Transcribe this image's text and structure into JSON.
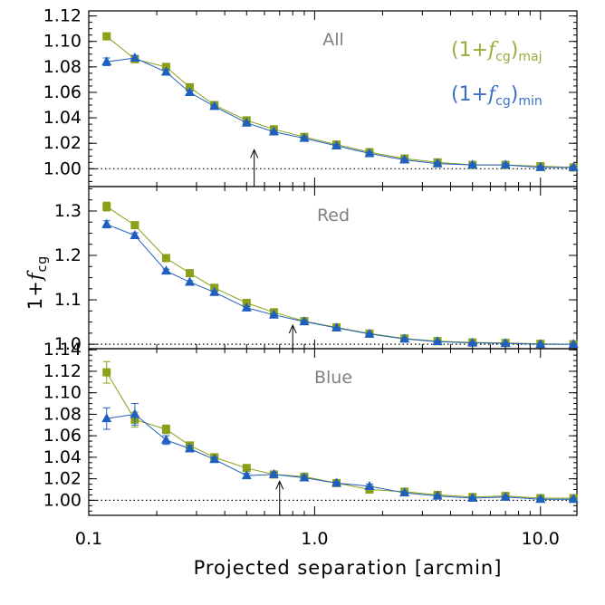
{
  "colors": {
    "major": "#8a9f1a",
    "minor": "#1f5fc0",
    "title": "#808080",
    "legend_major": "#9aab3a",
    "legend_minor": "#3a6fc8"
  },
  "figure": {
    "xlabel": "Projected separation [arcmin]",
    "ylabel_prefix": "1+",
    "ylabel_f": "f",
    "ylabel_sub": "cg",
    "legend": {
      "major": {
        "open": "(1+",
        "f": "f",
        "sub_cg": "cg",
        "close": ")",
        "sub": "maj"
      },
      "minor": {
        "open": "(1+",
        "f": "f",
        "sub_cg": "cg",
        "close": ")",
        "sub": "min"
      }
    },
    "x_tick_labels": [
      "0.1",
      "1.0",
      "10.0"
    ]
  },
  "chart_data": [
    {
      "type": "line",
      "title": "All",
      "xscale": "log",
      "xlim": [
        0.1,
        14.5
      ],
      "ylim": [
        0.986,
        1.124
      ],
      "yticks": [
        1.0,
        1.02,
        1.04,
        1.06,
        1.08,
        1.1,
        1.12
      ],
      "ytick_labels": [
        "1.00",
        "1.02",
        "1.04",
        "1.06",
        "1.08",
        "1.10",
        "1.12"
      ],
      "reference_line": 1.0,
      "arrow_x": 0.54,
      "legend_location": "top-right",
      "x": [
        0.12,
        0.16,
        0.22,
        0.28,
        0.36,
        0.5,
        0.66,
        0.9,
        1.25,
        1.75,
        2.5,
        3.5,
        5.0,
        7.0,
        10.0,
        14.0
      ],
      "series": [
        {
          "name": "(1+fcg)maj",
          "marker": "square",
          "values": [
            1.104,
            1.086,
            1.08,
            1.064,
            1.05,
            1.038,
            1.031,
            1.025,
            1.019,
            1.013,
            1.008,
            1.005,
            1.003,
            1.003,
            1.002,
            1.001
          ],
          "errors": [
            0.002,
            0.002,
            0.002,
            0.001,
            0.001,
            0.001,
            0.001,
            0.001,
            0.001,
            0.001,
            0.001,
            0.001,
            0.001,
            0.001,
            0.001,
            0.001
          ]
        },
        {
          "name": "(1+fcg)min",
          "marker": "triangle",
          "values": [
            1.084,
            1.087,
            1.076,
            1.06,
            1.049,
            1.036,
            1.029,
            1.024,
            1.018,
            1.012,
            1.007,
            1.004,
            1.003,
            1.003,
            1.001,
            1.001
          ],
          "errors": [
            0.003,
            0.002,
            0.002,
            0.001,
            0.001,
            0.001,
            0.001,
            0.001,
            0.001,
            0.001,
            0.001,
            0.001,
            0.001,
            0.001,
            0.001,
            0.001
          ]
        }
      ]
    },
    {
      "type": "line",
      "title": "Red",
      "xscale": "log",
      "xlim": [
        0.1,
        14.5
      ],
      "ylim": [
        0.99,
        1.355
      ],
      "yticks": [
        1.0,
        1.1,
        1.2,
        1.3
      ],
      "ytick_labels": [
        "1.0",
        "1.1",
        "1.2",
        "1.3"
      ],
      "reference_line": 1.0,
      "arrow_x": 0.8,
      "x": [
        0.12,
        0.16,
        0.22,
        0.28,
        0.36,
        0.5,
        0.66,
        0.9,
        1.25,
        1.75,
        2.5,
        3.5,
        5.0,
        7.0,
        10.0,
        14.0
      ],
      "series": [
        {
          "name": "(1+fcg)maj",
          "marker": "square",
          "values": [
            1.31,
            1.268,
            1.194,
            1.16,
            1.127,
            1.093,
            1.072,
            1.052,
            1.038,
            1.024,
            1.013,
            1.007,
            1.004,
            1.003,
            1.001,
            1.0
          ],
          "errors": [
            0.01,
            0.007,
            0.004,
            0.003,
            0.003,
            0.002,
            0.002,
            0.002,
            0.001,
            0.001,
            0.001,
            0.001,
            0.001,
            0.001,
            0.001,
            0.001
          ]
        },
        {
          "name": "(1+fcg)min",
          "marker": "triangle",
          "values": [
            1.27,
            1.245,
            1.165,
            1.14,
            1.117,
            1.082,
            1.066,
            1.051,
            1.037,
            1.023,
            1.012,
            1.006,
            1.003,
            1.002,
            1.0,
            1.0
          ],
          "errors": [
            0.008,
            0.006,
            0.004,
            0.003,
            0.003,
            0.002,
            0.002,
            0.002,
            0.001,
            0.001,
            0.001,
            0.001,
            0.001,
            0.001,
            0.001,
            0.001
          ]
        }
      ]
    },
    {
      "type": "line",
      "title": "Blue",
      "xscale": "log",
      "xlim": [
        0.1,
        14.5
      ],
      "ylim": [
        0.986,
        1.141
      ],
      "yticks": [
        1.0,
        1.02,
        1.04,
        1.06,
        1.08,
        1.1,
        1.12,
        1.14
      ],
      "ytick_labels": [
        "1.00",
        "1.02",
        "1.04",
        "1.06",
        "1.08",
        "1.10",
        "1.12",
        "1.14"
      ],
      "reference_line": 1.0,
      "arrow_x": 0.7,
      "x": [
        0.12,
        0.16,
        0.22,
        0.28,
        0.36,
        0.5,
        0.66,
        0.9,
        1.25,
        1.75,
        2.5,
        3.5,
        5.0,
        7.0,
        10.0,
        14.0
      ],
      "series": [
        {
          "name": "(1+fcg)maj",
          "marker": "square",
          "values": [
            1.119,
            1.075,
            1.066,
            1.051,
            1.04,
            1.03,
            1.024,
            1.022,
            1.016,
            1.01,
            1.008,
            1.005,
            1.003,
            1.004,
            1.002,
            1.002
          ],
          "errors": [
            0.01,
            0.007,
            0.004,
            0.003,
            0.002,
            0.002,
            0.002,
            0.002,
            0.001,
            0.001,
            0.001,
            0.001,
            0.001,
            0.001,
            0.001,
            0.001
          ]
        },
        {
          "name": "(1+fcg)min",
          "marker": "triangle",
          "values": [
            1.076,
            1.08,
            1.056,
            1.048,
            1.038,
            1.023,
            1.024,
            1.021,
            1.016,
            1.013,
            1.007,
            1.004,
            1.002,
            1.003,
            1.001,
            1.001
          ],
          "errors": [
            0.01,
            0.01,
            0.004,
            0.003,
            0.002,
            0.002,
            0.002,
            0.002,
            0.001,
            0.002,
            0.001,
            0.001,
            0.001,
            0.001,
            0.001,
            0.001
          ]
        }
      ]
    }
  ]
}
